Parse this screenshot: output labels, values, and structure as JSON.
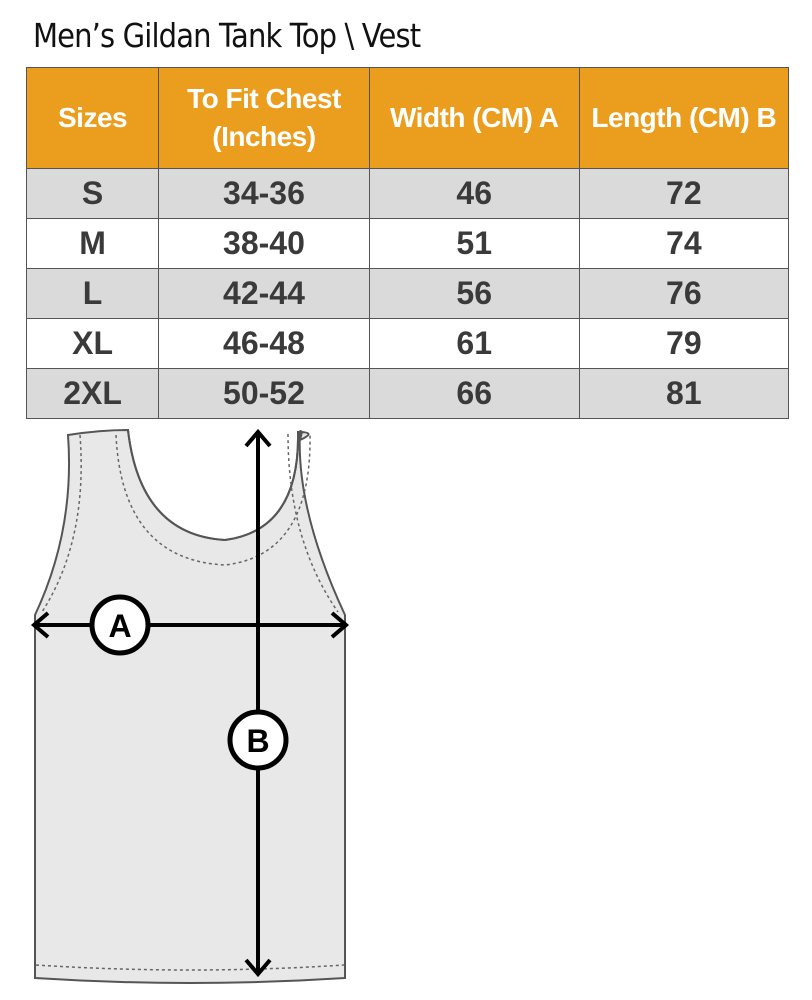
{
  "title": "Men’s Gildan Tank Top \\ Vest",
  "table": {
    "headers": [
      "Sizes",
      "To Fit Chest (Inches)",
      "Width (CM) A",
      "Length  (CM) B"
    ],
    "rows": [
      [
        "S",
        "34-36",
        "46",
        "72"
      ],
      [
        "M",
        "38-40",
        "51",
        "74"
      ],
      [
        "L",
        "42-44",
        "56",
        "76"
      ],
      [
        "XL",
        "46-48",
        "61",
        "79"
      ],
      [
        "2XL",
        "50-52",
        "66",
        "81"
      ]
    ]
  },
  "diagram": {
    "label_a": "A",
    "label_b": "B"
  },
  "colors": {
    "header": "#eb9d1e",
    "stripe": "#dadada"
  }
}
